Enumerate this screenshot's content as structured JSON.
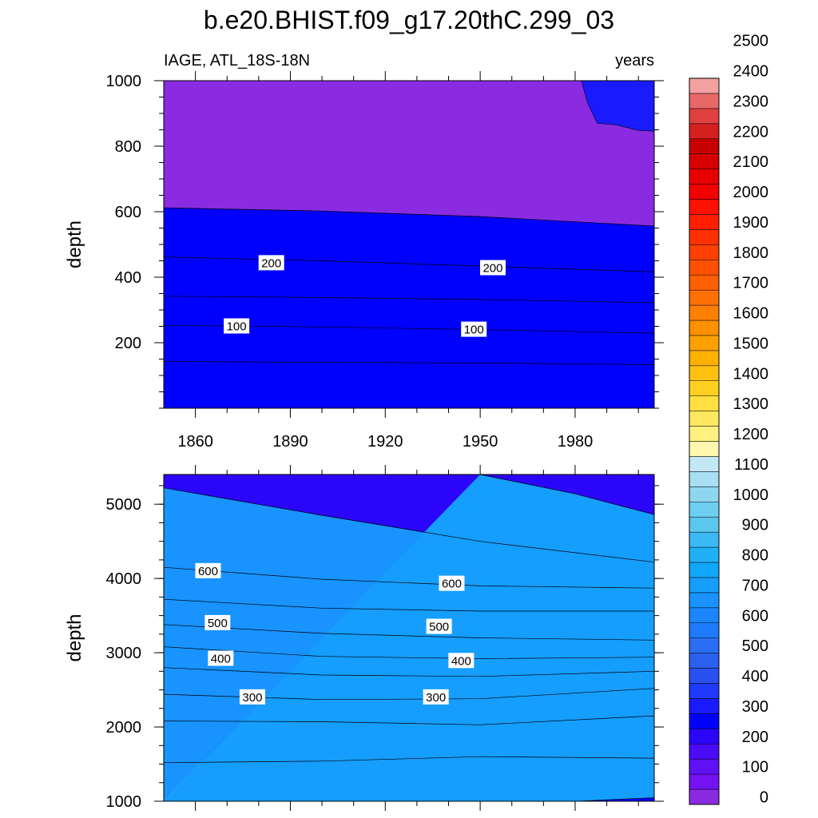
{
  "title": "b.e20.BHIST.f09_g17.20thC.299_03",
  "left_label": "IAGE, ATL_18S-18N",
  "right_label": "years",
  "colorbar": {
    "labels": [
      "0",
      "100",
      "200",
      "300",
      "400",
      "500",
      "600",
      "700",
      "800",
      "900",
      "1000",
      "1100",
      "1200",
      "1300",
      "1400",
      "1500",
      "1600",
      "1700",
      "1800",
      "1900",
      "2000",
      "2100",
      "2200",
      "2300",
      "2400",
      "2500"
    ],
    "colors": [
      "#8a2be2",
      "#7412f2",
      "#6010f5",
      "#4a0bf7",
      "#2a05fa",
      "#0000ff",
      "#1a1aff",
      "#1f3aff",
      "#2850f0",
      "#2a60ee",
      "#2a6ef5",
      "#1e7bff",
      "#1b86ff",
      "#1893ff",
      "#159efe",
      "#10a8fc",
      "#20b0f8",
      "#3ab9f4",
      "#5cc6ef",
      "#6ecff0",
      "#8fd7f0",
      "#a9dff2",
      "#c3e8f5",
      "#fff7b0",
      "#fff080",
      "#ffe860",
      "#ffe040",
      "#ffd020",
      "#ffc010",
      "#ffb000",
      "#ffa000",
      "#ff9000",
      "#ff8000",
      "#ff7000",
      "#ff6000",
      "#ff5000",
      "#ff4000",
      "#ff3000",
      "#ff1f00",
      "#ff1000",
      "#f50000",
      "#e80000",
      "#d60000",
      "#c80000",
      "#d62020",
      "#e04040",
      "#e86868",
      "#f5a0a0"
    ]
  },
  "chart_data": [
    {
      "type": "contour",
      "panel": "upper",
      "xlabel": "",
      "ylabel": "depth",
      "xlim": [
        1850,
        2005
      ],
      "ylim": [
        1000,
        0
      ],
      "xticks": [
        1860,
        1890,
        1920,
        1950,
        1980
      ],
      "xtick_labels": [
        "1860",
        "1890",
        "1920",
        "1950",
        "1980"
      ],
      "yticks": [
        200,
        400,
        600,
        800,
        1000
      ],
      "ytick_labels": [
        "200",
        "400",
        "600",
        "800",
        "1000"
      ],
      "contour_labels": [
        {
          "text": "100",
          "x": 1873,
          "y": 250
        },
        {
          "text": "100",
          "x": 1948,
          "y": 240
        },
        {
          "text": "200",
          "x": 1884,
          "y": 443
        },
        {
          "text": "200",
          "x": 1954,
          "y": 428
        }
      ],
      "contours": [
        {
          "level": 50,
          "x": [
            1850,
            1900,
            1950,
            2005
          ],
          "y": [
            143,
            140,
            138,
            133
          ]
        },
        {
          "level": 100,
          "x": [
            1850,
            1900,
            1950,
            2005
          ],
          "y": [
            253,
            248,
            240,
            229
          ]
        },
        {
          "level": 150,
          "x": [
            1850,
            1900,
            1950,
            2005
          ],
          "y": [
            342,
            338,
            332,
            322
          ]
        },
        {
          "level": 200,
          "x": [
            1850,
            1900,
            1950,
            2005
          ],
          "y": [
            462,
            450,
            434,
            416
          ]
        },
        {
          "level": 250,
          "x": [
            1850,
            1900,
            1950,
            2005
          ],
          "y": [
            612,
            602,
            585,
            556
          ]
        }
      ],
      "fill_levels_top_to_bottom": [
        0,
        50,
        100,
        150,
        200,
        250
      ],
      "corner_patch_level": 300
    },
    {
      "type": "contour",
      "panel": "lower",
      "xlabel": "",
      "ylabel": "depth",
      "xlim": [
        1850,
        2005
      ],
      "ylim": [
        5400,
        1000
      ],
      "yticks": [
        1000,
        2000,
        3000,
        4000,
        5000
      ],
      "ytick_labels": [
        "1000",
        "2000",
        "3000",
        "4000",
        "5000"
      ],
      "contour_labels": [
        {
          "text": "300",
          "x": 1878,
          "y": 2400
        },
        {
          "text": "300",
          "x": 1936,
          "y": 2400
        },
        {
          "text": "400",
          "x": 1868,
          "y": 2920
        },
        {
          "text": "400",
          "x": 1944,
          "y": 2890
        },
        {
          "text": "500",
          "x": 1867,
          "y": 3400
        },
        {
          "text": "500",
          "x": 1937,
          "y": 3350
        },
        {
          "text": "600",
          "x": 1864,
          "y": 4100
        },
        {
          "text": "600",
          "x": 1941,
          "y": 3930
        }
      ],
      "contours": [
        {
          "level": 250,
          "x": [
            1850,
            1900,
            1950,
            2005
          ],
          "y": [
            1520,
            1540,
            1600,
            1580
          ]
        },
        {
          "level": 300,
          "x": [
            1850,
            1900,
            1950,
            2005
          ],
          "y": [
            2080,
            2070,
            2030,
            2150
          ]
        },
        {
          "level": 350,
          "x": [
            1850,
            1900,
            1950,
            2005
          ],
          "y": [
            2440,
            2370,
            2380,
            2520
          ]
        },
        {
          "level": 400,
          "x": [
            1850,
            1900,
            1950,
            2005
          ],
          "y": [
            2800,
            2700,
            2680,
            2750
          ]
        },
        {
          "level": 450,
          "x": [
            1850,
            1900,
            1950,
            2005
          ],
          "y": [
            3080,
            2950,
            2920,
            2940
          ]
        },
        {
          "level": 500,
          "x": [
            1850,
            1900,
            1950,
            2005
          ],
          "y": [
            3380,
            3260,
            3200,
            3170
          ]
        },
        {
          "level": 550,
          "x": [
            1850,
            1900,
            1950,
            2005
          ],
          "y": [
            3720,
            3600,
            3560,
            3560
          ]
        },
        {
          "level": 600,
          "x": [
            1850,
            1900,
            1950,
            2005
          ],
          "y": [
            4150,
            3990,
            3900,
            3870
          ]
        },
        {
          "level": 650,
          "x": [
            1850,
            1900,
            1950,
            2005
          ],
          "y": [
            5220,
            4850,
            4500,
            4220
          ]
        },
        {
          "level": 700,
          "x": [
            1950,
            1980,
            2005
          ],
          "y": [
            5400,
            5140,
            4860
          ]
        }
      ],
      "fill_levels_top_to_bottom": [
        200,
        250,
        300,
        350,
        400,
        450,
        500,
        550,
        600,
        650,
        700
      ],
      "top_right_band_level": 250
    }
  ]
}
